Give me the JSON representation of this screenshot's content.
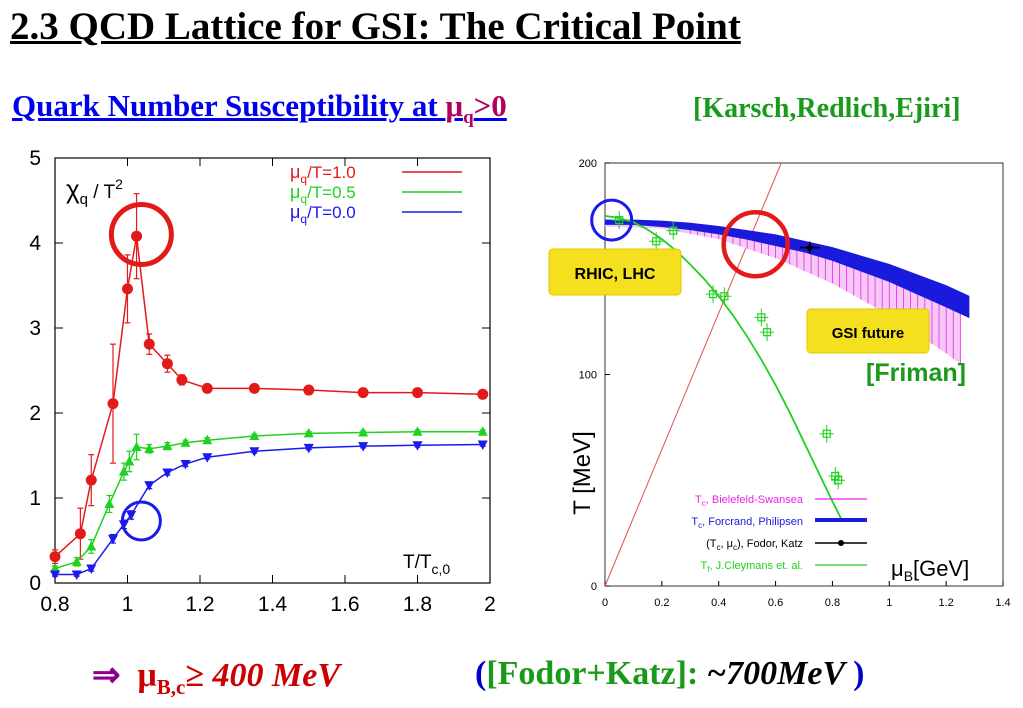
{
  "slide": {
    "title": "2.3 QCD Lattice for GSI: The Critical Point",
    "subtitle": "Quark Number Susceptibility at ",
    "subtitle_mu": "μ",
    "subtitle_mu_sub": "q",
    "subtitle_cond": ">0",
    "citation": "[Karsch,Redlich,Ejiri]",
    "conclusion_arrow": "⇒",
    "conclusion_mu": "μ",
    "conclusion_sub": "B,c",
    "conclusion_ge": "≥",
    "conclusion_value": " 400 MeV",
    "fodor_open": "(",
    "fodor_label": "[Fodor+Katz]:",
    "fodor_value": " ~700MeV ",
    "fodor_close": ")"
  },
  "chart_data": [
    {
      "type": "line",
      "ylabel_main": "χ",
      "ylabel_sub": "q",
      "ylabel_rest": " / T",
      "ylabel_sup": "2",
      "xlabel_main": "T/T",
      "xlabel_sub": "c,0",
      "xlim": [
        0.8,
        2.0
      ],
      "ylim": [
        0,
        5
      ],
      "xticks": [
        0.8,
        1,
        1.2,
        1.4,
        1.6,
        1.8,
        2
      ],
      "xtick_labels": [
        "0.8",
        "1",
        "1.2",
        "1.4",
        "1.6",
        "1.8",
        "2"
      ],
      "yticks": [
        0,
        1,
        2,
        3,
        4,
        5
      ],
      "ytick_labels": [
        "0",
        "1",
        "2",
        "3",
        "4",
        "5"
      ],
      "legend_position": "top-right",
      "series": [
        {
          "name_mu": "μ",
          "name_sub": "q",
          "name_rest": "/T=1.0",
          "color": "#e31a1a",
          "marker": "circle",
          "x": [
            0.8,
            0.87,
            0.9,
            0.96,
            1.0,
            1.025,
            1.06,
            1.11,
            1.15,
            1.22,
            1.35,
            1.5,
            1.65,
            1.8,
            1.98
          ],
          "y": [
            0.31,
            0.58,
            1.21,
            2.11,
            3.46,
            4.08,
            2.81,
            2.58,
            2.39,
            2.29,
            2.29,
            2.27,
            2.24,
            2.24,
            2.22
          ],
          "err": [
            0.08,
            0.3,
            0.3,
            0.7,
            0.4,
            0.5,
            0.12,
            0.1,
            0.06,
            0.05,
            0.04,
            0.04,
            0.04,
            0.04,
            0.04
          ]
        },
        {
          "name_mu": "μ",
          "name_sub": "q",
          "name_rest": "/T=0.5",
          "color": "#1fd21f",
          "marker": "triangle-up",
          "x": [
            0.8,
            0.86,
            0.9,
            0.95,
            0.99,
            1.005,
            1.025,
            1.06,
            1.11,
            1.16,
            1.22,
            1.35,
            1.5,
            1.65,
            1.8,
            1.98
          ],
          "y": [
            0.17,
            0.25,
            0.43,
            0.93,
            1.31,
            1.43,
            1.6,
            1.58,
            1.61,
            1.65,
            1.68,
            1.73,
            1.76,
            1.77,
            1.78,
            1.78
          ],
          "err": [
            0.03,
            0.05,
            0.08,
            0.1,
            0.1,
            0.12,
            0.15,
            0.05,
            0.04,
            0.03,
            0.03,
            0.02,
            0.02,
            0.02,
            0.02,
            0.02
          ]
        },
        {
          "name_mu": "μ",
          "name_sub": "q",
          "name_rest": "/T=0.0",
          "color": "#1a1aee",
          "marker": "triangle-down",
          "x": [
            0.8,
            0.86,
            0.9,
            0.96,
            0.99,
            1.01,
            1.06,
            1.11,
            1.16,
            1.22,
            1.35,
            1.5,
            1.65,
            1.8,
            1.98
          ],
          "y": [
            0.1,
            0.1,
            0.17,
            0.52,
            0.69,
            0.8,
            1.15,
            1.3,
            1.4,
            1.48,
            1.55,
            1.59,
            1.61,
            1.62,
            1.63
          ],
          "err": [
            0.02,
            0.02,
            0.03,
            0.05,
            0.05,
            0.05,
            0.04,
            0.03,
            0.03,
            0.02,
            0.02,
            0.02,
            0.02,
            0.02,
            0.02
          ]
        }
      ],
      "annotations": [
        {
          "shape": "circle",
          "color": "#e31a1a",
          "x": 1.03,
          "y": 4.1
        },
        {
          "shape": "circle",
          "color": "#1a1aee",
          "x": 1.03,
          "y": 0.73
        }
      ]
    },
    {
      "type": "scatter",
      "ylabel": "T [MeV]",
      "xlabel_mu": "μ",
      "xlabel_sub": "B",
      "xlabel_rest": "[GeV]",
      "xlim": [
        0,
        1.4
      ],
      "ylim": [
        0,
        200
      ],
      "xticks": [
        0,
        0.2,
        0.4,
        0.6,
        0.8,
        1,
        1.2,
        1.4
      ],
      "xtick_labels": [
        "0",
        "0.2",
        "0.4",
        "0.6",
        "0.8",
        "1",
        "1.2",
        "1.4"
      ],
      "yticks": [
        0,
        100,
        200
      ],
      "ytick_labels": [
        "0",
        "100",
        "200"
      ],
      "legend_position": "bottom-right",
      "legend": [
        {
          "t": "T",
          "s": "c",
          "rest": ", Bielefeld-Swansea",
          "color": "#ee22ee",
          "style": "hatch"
        },
        {
          "t": "T",
          "s": "c",
          "rest": ", Forcrand, Philipsen",
          "color": "#1a1add",
          "style": "band"
        },
        {
          "t": "(T",
          "s": "c",
          "rest": ", μ",
          "s2": "c",
          "rest2": "), Fodor, Katz",
          "color": "#000000",
          "style": "point"
        },
        {
          "t": "T",
          "s": "f",
          "rest": ", J.Cleymans et. al.",
          "color": "#1fd21f",
          "style": "line"
        }
      ],
      "forcrand_band": {
        "x": [
          0.0,
          0.1,
          0.2,
          0.3,
          0.4,
          0.5,
          0.6,
          0.7,
          0.8,
          0.9,
          1.0,
          1.1,
          1.2,
          1.28
        ],
        "y_upper": [
          173,
          173,
          172.5,
          171.5,
          170,
          168,
          166,
          163,
          160,
          156,
          152,
          147,
          142,
          137
        ],
        "y_lower": [
          171,
          171,
          170,
          168.5,
          166.5,
          164,
          161,
          158,
          154,
          149,
          144,
          138,
          132,
          127
        ]
      },
      "bielefeld_band": {
        "x": [
          0.0,
          0.2,
          0.4,
          0.6,
          0.8,
          1.0,
          1.2,
          1.25
        ],
        "y_upper": [
          173,
          172.5,
          170,
          166,
          160,
          152,
          142,
          139
        ],
        "y_lower": [
          170,
          169,
          164,
          155,
          143,
          128,
          110,
          105
        ]
      },
      "freezeout_curve": {
        "x": [
          0.0,
          0.05,
          0.1,
          0.15,
          0.2,
          0.25,
          0.3,
          0.35,
          0.4,
          0.45,
          0.5,
          0.55,
          0.6,
          0.65,
          0.7,
          0.75,
          0.8,
          0.83
        ],
        "y": [
          175,
          174,
          172,
          168.5,
          164,
          158.5,
          152,
          145,
          137,
          128,
          118,
          107,
          95,
          82,
          68,
          54,
          40,
          32
        ]
      },
      "freezeout_points": {
        "x": [
          0.05,
          0.18,
          0.24,
          0.38,
          0.42,
          0.55,
          0.57,
          0.78,
          0.81,
          0.82
        ],
        "y": [
          173,
          163,
          168,
          138,
          137,
          127,
          120,
          72,
          52,
          50
        ]
      },
      "fodor_point": {
        "x": 0.72,
        "y": 160
      },
      "diagonal_line": {
        "x": [
          0,
          0.62
        ],
        "y": [
          0,
          200
        ]
      },
      "annotations": [
        {
          "shape": "circle",
          "color": "#1a1aee",
          "x": 0.02,
          "y": 173
        },
        {
          "shape": "circle",
          "color": "#e31a1a",
          "x": 0.53,
          "y": 163
        }
      ],
      "callouts": [
        {
          "text": "RHIC, LHC"
        },
        {
          "text": "GSI future"
        }
      ],
      "friman_label": "[Friman]"
    }
  ]
}
